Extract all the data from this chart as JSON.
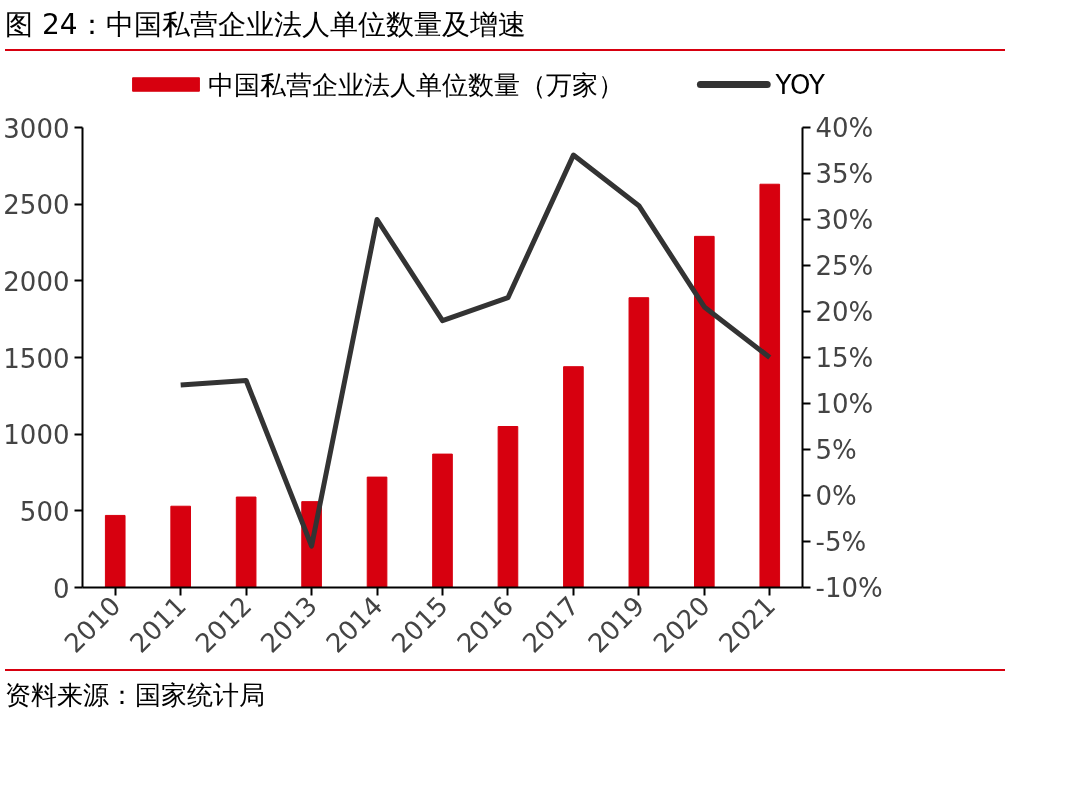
{
  "chart_data": {
    "type": "bar",
    "title": "图 24：中国私营企业法人单位数量及增速",
    "categories": [
      "2010",
      "2011",
      "2012",
      "2013",
      "2014",
      "2015",
      "2016",
      "2017",
      "2019",
      "2020",
      "2021"
    ],
    "series": [
      {
        "name": "中国私营企业法人单位数量（万家）",
        "type": "bar",
        "color": "#d7000f",
        "values": [
          470,
          530,
          590,
          560,
          720,
          870,
          1050,
          1440,
          1890,
          2290,
          2630
        ]
      },
      {
        "name": "YOY",
        "type": "line",
        "axis": "y2",
        "color": "#333333",
        "values": [
          null,
          12,
          12.5,
          -5.5,
          30,
          19,
          21.5,
          37,
          31.5,
          20.5,
          15
        ]
      }
    ],
    "ylim": [
      0,
      3000
    ],
    "yticks": [
      0,
      500,
      1000,
      1500,
      2000,
      2500,
      3000
    ],
    "y2lim": [
      -10,
      40
    ],
    "y2ticks": [
      {
        "value": -10,
        "label": "-10%"
      },
      {
        "value": -5,
        "label": "-5%"
      },
      {
        "value": 0,
        "label": "0%"
      },
      {
        "value": 5,
        "label": "5%"
      },
      {
        "value": 10,
        "label": "10%"
      },
      {
        "value": 15,
        "label": "15%"
      },
      {
        "value": 20,
        "label": "20%"
      },
      {
        "value": 25,
        "label": "25%"
      },
      {
        "value": 30,
        "label": "30%"
      },
      {
        "value": 35,
        "label": "35%"
      },
      {
        "value": 40,
        "label": "40%"
      }
    ],
    "legend": "top",
    "grid": false,
    "annotations": [
      "资料来源：国家统计局"
    ]
  }
}
